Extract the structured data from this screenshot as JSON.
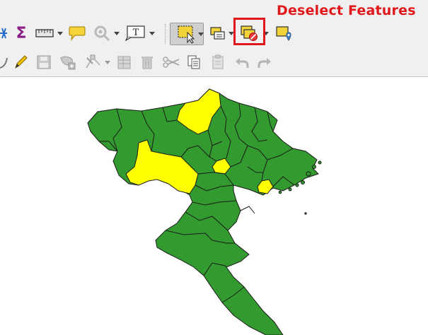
{
  "annotation": {
    "label": "Deselect Features",
    "color": "#e0181b"
  },
  "toolbar": {
    "tools": [
      {
        "name": "pan-map-to-selection",
        "icon": "snowflake-icon"
      },
      {
        "name": "statistical-summary",
        "icon": "sigma-icon"
      },
      {
        "name": "measure",
        "icon": "ruler-icon"
      },
      {
        "name": "map-tips",
        "icon": "speech-bubble-icon"
      },
      {
        "name": "identify",
        "icon": "gear-icon"
      },
      {
        "name": "text-annotation",
        "icon": "text-box-icon",
        "glyph": "T"
      },
      {
        "name": "select-features",
        "icon": "select-rectangle-icon"
      },
      {
        "name": "select-by-value",
        "icon": "select-value-icon"
      },
      {
        "name": "deselect-features",
        "icon": "deselect-icon"
      },
      {
        "name": "select-location",
        "icon": "select-location-icon"
      }
    ],
    "edit_tools": [
      {
        "name": "edit-curve",
        "icon": "curve-icon"
      },
      {
        "name": "toggle-editing",
        "icon": "pencil-icon"
      },
      {
        "name": "save-edits",
        "icon": "save-icon"
      },
      {
        "name": "add-feature",
        "icon": "add-feature-icon"
      },
      {
        "name": "vertex-tool",
        "icon": "vertex-icon"
      },
      {
        "name": "modify-attributes",
        "icon": "table-edit-icon"
      },
      {
        "name": "delete-selected",
        "icon": "trash-icon"
      },
      {
        "name": "cut-features",
        "icon": "scissors-icon"
      },
      {
        "name": "copy-features",
        "icon": "copy-icon"
      },
      {
        "name": "paste-features",
        "icon": "paste-icon"
      },
      {
        "name": "undo",
        "icon": "undo-icon"
      },
      {
        "name": "redo",
        "icon": "redo-icon"
      }
    ]
  },
  "map": {
    "base_color": "#339a2f",
    "selected_color": "#ffff00",
    "outline_color": "#1a1a1a"
  }
}
